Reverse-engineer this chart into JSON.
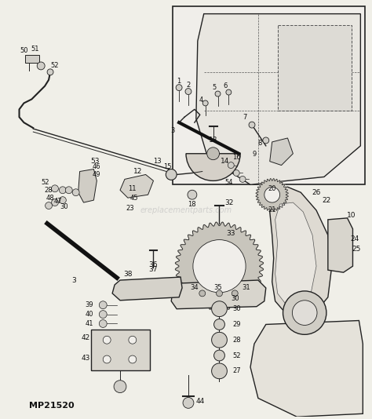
{
  "bg_color": "#f0efe8",
  "fig_width": 4.74,
  "fig_height": 5.34,
  "dpi": 100,
  "part_number": "MP21520",
  "watermark": "ereplacementparts.com"
}
